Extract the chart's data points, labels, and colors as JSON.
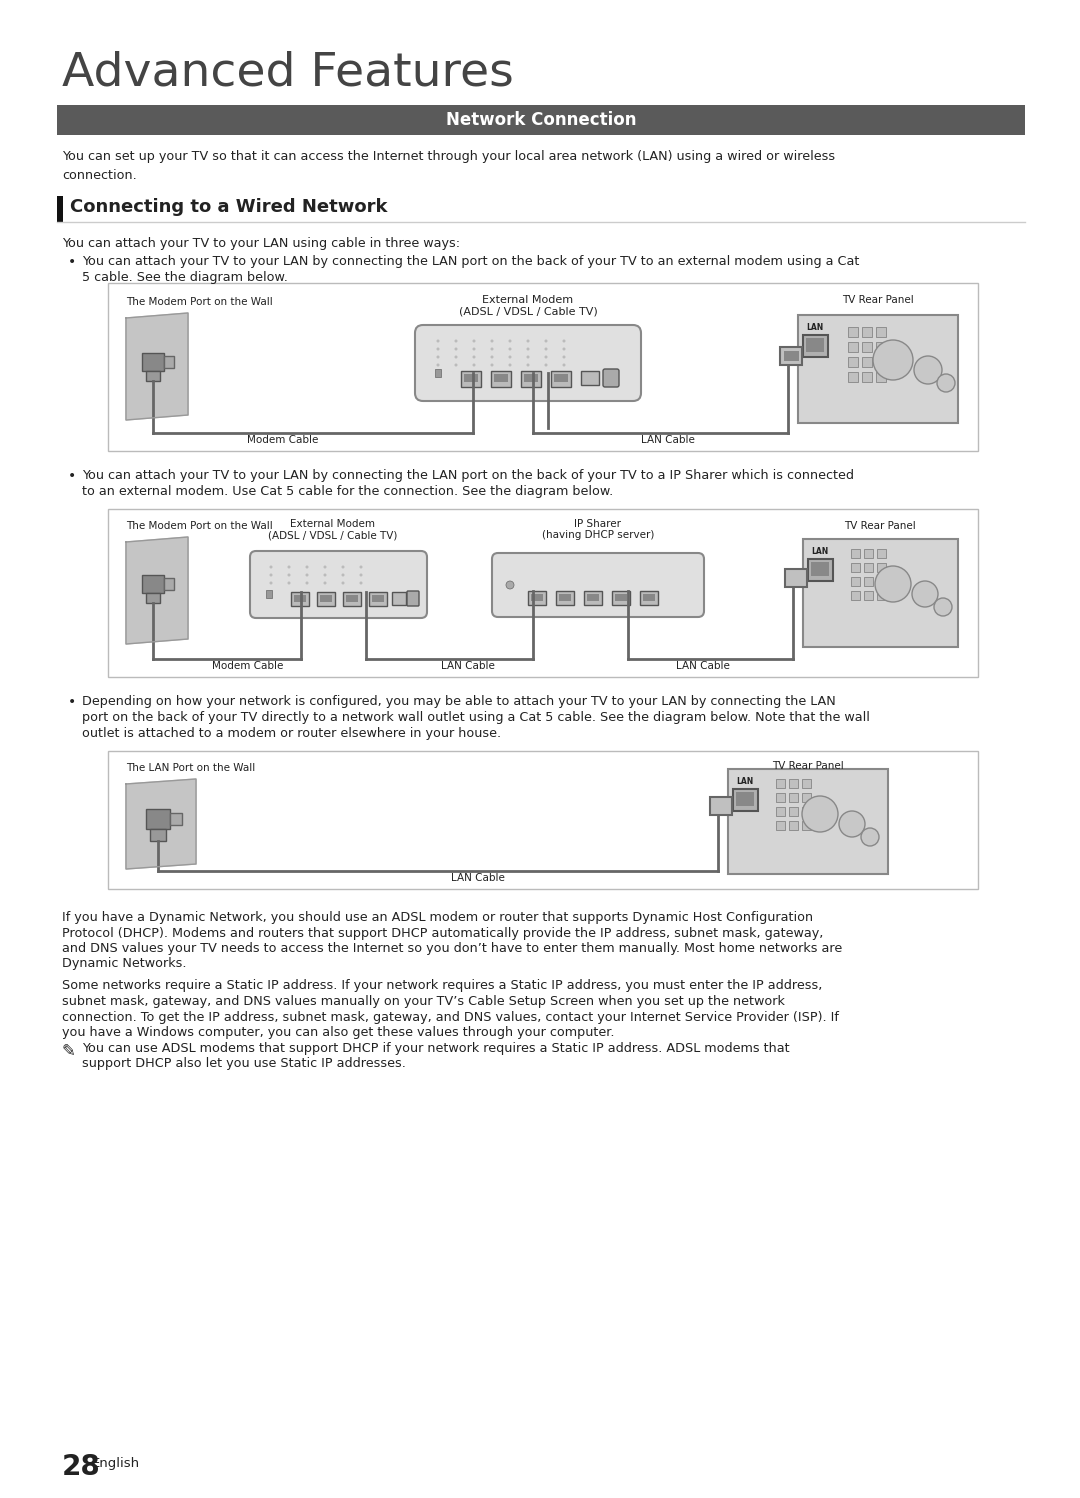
{
  "bg_color": "#ffffff",
  "page_title": "Advanced Features",
  "section_bar_color": "#5a5a5a",
  "section_bar_text": "Network Connection",
  "section_bar_text_color": "#ffffff",
  "subsection_title": "Connecting to a Wired Network",
  "subsection_bar_color": "#111111",
  "intro_text": "You can set up your TV so that it can access the Internet through your local area network (LAN) using a wired or wireless\nconnection.",
  "three_ways_text": "You can attach your TV to your LAN using cable in three ways:",
  "bullet1_line1": "You can attach your TV to your LAN by connecting the LAN port on the back of your TV to an external modem using a Cat",
  "bullet1_line2": "5 cable. See the diagram below.",
  "bullet2_line1": "You can attach your TV to your LAN by connecting the LAN port on the back of your TV to a IP Sharer which is connected",
  "bullet2_line2": "to an external modem. Use Cat 5 cable for the connection. See the diagram below.",
  "bullet3_line1": "Depending on how your network is configured, you may be able to attach your TV to your LAN by connecting the LAN",
  "bullet3_line2": "port on the back of your TV directly to a network wall outlet using a Cat 5 cable. See the diagram below. Note that the wall",
  "bullet3_line3": "outlet is attached to a modem or router elsewhere in your house.",
  "para1_line1": "If you have a Dynamic Network, you should use an ADSL modem or router that supports Dynamic Host Configuration",
  "para1_line2": "Protocol (DHCP). Modems and routers that support DHCP automatically provide the IP address, subnet mask, gateway,",
  "para1_line3": "and DNS values your TV needs to access the Internet so you don’t have to enter them manually. Most home networks are",
  "para1_line4": "Dynamic Networks.",
  "para2_line1": "Some networks require a Static IP address. If your network requires a Static IP address, you must enter the IP address,",
  "para2_line2": "subnet mask, gateway, and DNS values manually on your TV’s Cable Setup Screen when you set up the network",
  "para2_line3": "connection. To get the IP address, subnet mask, gateway, and DNS values, contact your Internet Service Provider (ISP). If",
  "para2_line4": "you have a Windows computer, you can also get these values through your computer.",
  "note_line1": "You can use ADSL modems that support DHCP if your network requires a Static IP address. ADSL modems that",
  "note_line2": "support DHCP also let you use Static IP addresses.",
  "page_number": "28",
  "page_lang": "English",
  "d1_wall_label": "The Modem Port on the Wall",
  "d1_modem_label1": "External Modem",
  "d1_modem_label2": "(ADSL / VDSL / Cable TV)",
  "d1_tv_label": "TV Rear Panel",
  "d1_modem_cable": "Modem Cable",
  "d1_lan_cable": "LAN Cable",
  "d2_wall_label": "The Modem Port on the Wall",
  "d2_modem_label1": "External Modem",
  "d2_modem_label2": "(ADSL / VDSL / Cable TV)",
  "d2_sharer_label1": "IP Sharer",
  "d2_sharer_label2": "(having DHCP server)",
  "d2_tv_label": "TV Rear Panel",
  "d2_modem_cable": "Modem Cable",
  "d2_lan_cable1": "LAN Cable",
  "d2_lan_cable2": "LAN Cable",
  "d3_wall_label": "The LAN Port on the Wall",
  "d3_tv_label": "TV Rear Panel",
  "d3_lan_cable": "LAN Cable",
  "text_color": "#222222",
  "light_gray": "#c8c8c8",
  "mid_gray": "#888888",
  "dark_gray": "#555555",
  "cable_color": "#666666",
  "border_color": "#bbbbbb"
}
